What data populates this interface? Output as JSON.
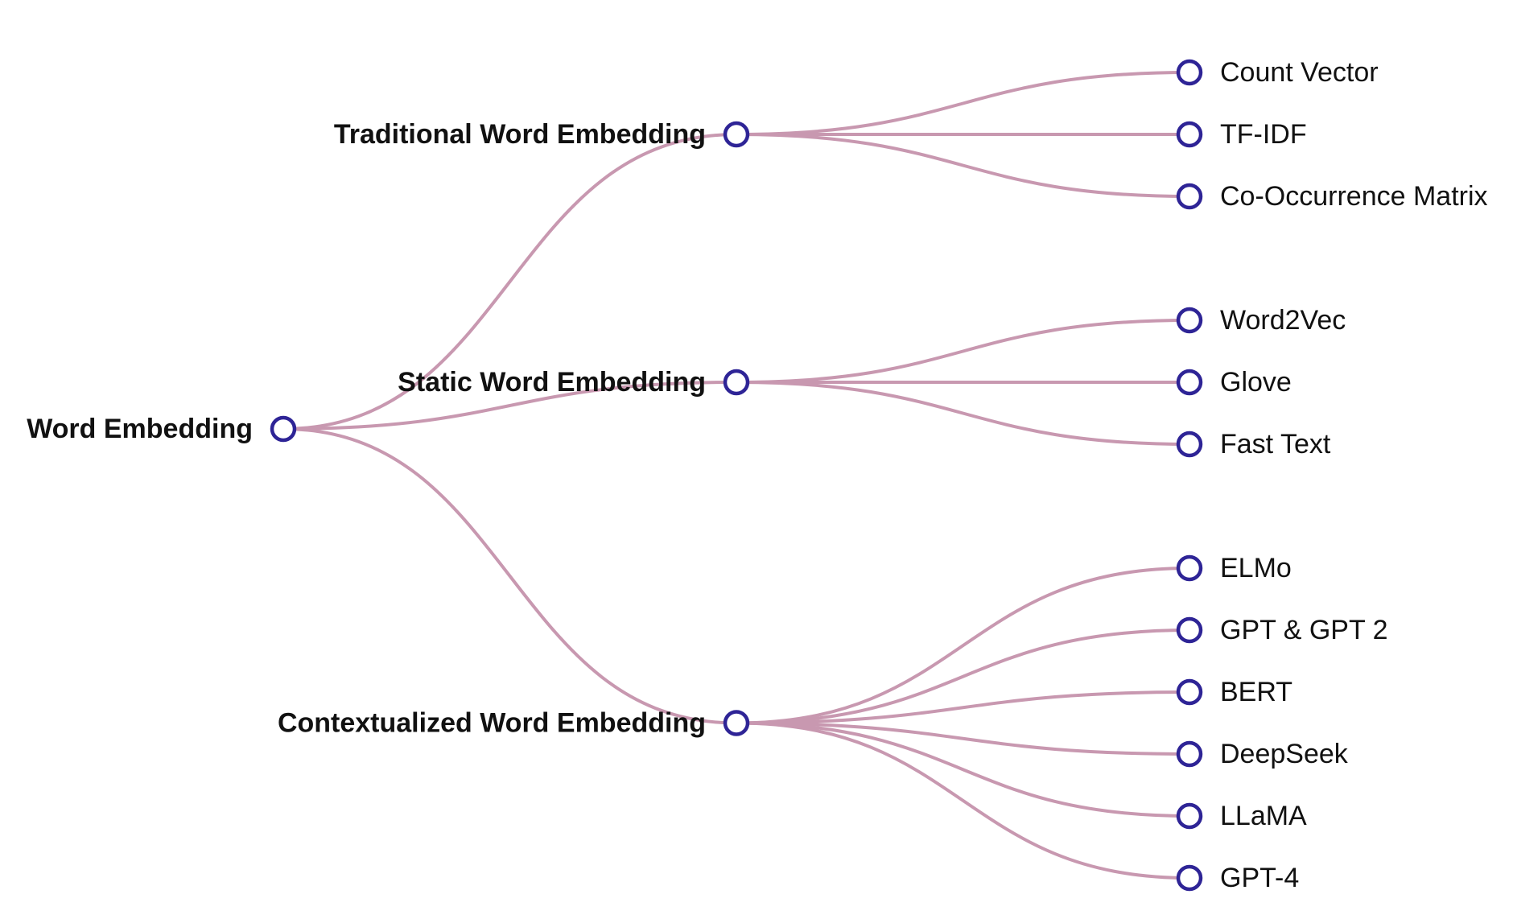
{
  "colors": {
    "link": "#c898b0",
    "node": "#2e2496"
  },
  "tree": {
    "name": "Word Embedding",
    "children": [
      {
        "name": "Traditional Word Embedding",
        "children": [
          {
            "name": "Count Vector"
          },
          {
            "name": "TF-IDF"
          },
          {
            "name": "Co-Occurrence Matrix"
          }
        ]
      },
      {
        "name": "Static Word Embedding",
        "children": [
          {
            "name": "Word2Vec"
          },
          {
            "name": "Glove"
          },
          {
            "name": "Fast Text"
          }
        ]
      },
      {
        "name": "Contextualized Word Embedding",
        "children": [
          {
            "name": "ELMo"
          },
          {
            "name": "GPT & GPT 2"
          },
          {
            "name": "BERT"
          },
          {
            "name": "DeepSeek"
          },
          {
            "name": "LLaMA"
          },
          {
            "name": "GPT-4"
          }
        ]
      }
    ]
  }
}
